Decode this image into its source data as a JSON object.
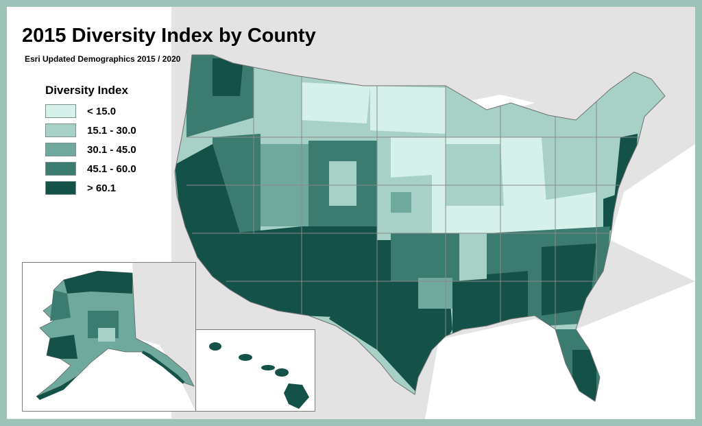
{
  "title": "2015 Diversity Index by County",
  "subtitle": "Esri Updated Demographics 2015 / 2020",
  "legend": {
    "title": "Diversity Index",
    "classes": [
      {
        "label": "< 15.0",
        "color": "#d6f0ea"
      },
      {
        "label": "15.1 - 30.0",
        "color": "#a7d1c6"
      },
      {
        "label": "30.1 - 45.0",
        "color": "#6fa89c"
      },
      {
        "label": "45.1 - 60.0",
        "color": "#3c7b6f"
      },
      {
        "label": "> 60.1",
        "color": "#145148"
      }
    ]
  },
  "colors": {
    "frame": "#9dc3b9",
    "background_land": "#e3e3e3",
    "water": "#ffffff",
    "state_borders": "#8a8a8a"
  },
  "insets": [
    "Alaska",
    "Hawaii"
  ]
}
